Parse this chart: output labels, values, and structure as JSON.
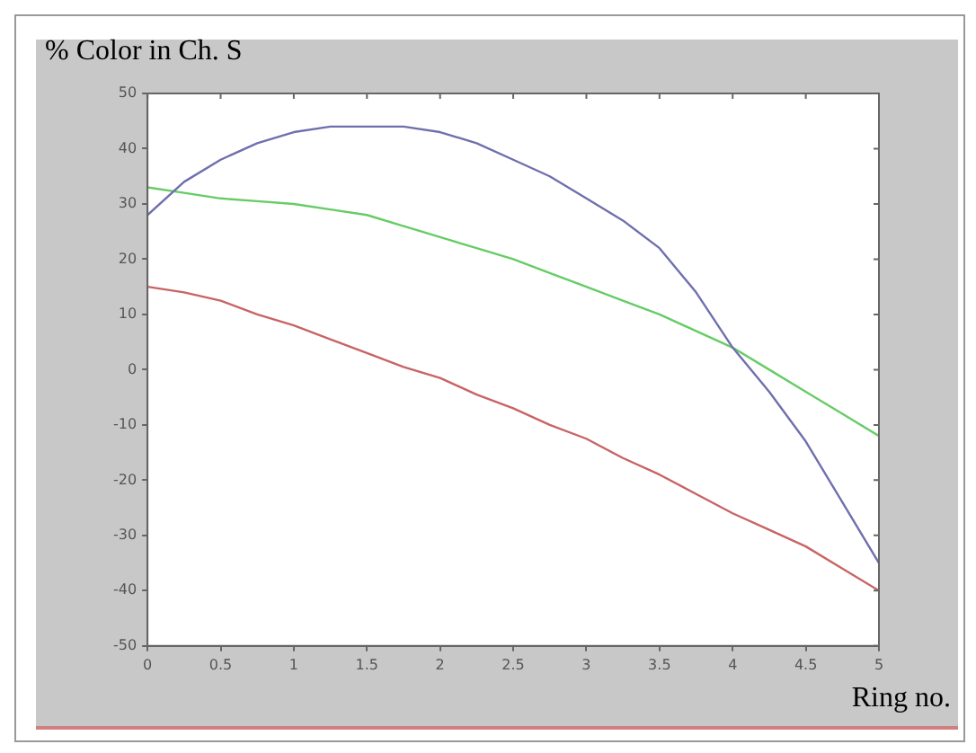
{
  "chart_data": {
    "type": "line",
    "title": "% Color in Ch. S",
    "xlabel": "Ring no.",
    "x": [
      0,
      0.25,
      0.5,
      0.75,
      1,
      1.25,
      1.5,
      1.75,
      2,
      2.25,
      2.5,
      2.75,
      3,
      3.25,
      3.5,
      3.75,
      4,
      4.25,
      4.5,
      4.75,
      5
    ],
    "series": [
      {
        "color": "#6f6fae",
        "values": [
          28,
          34,
          38,
          41,
          43,
          44,
          44,
          44,
          43,
          41,
          38,
          35,
          31,
          27,
          22,
          14,
          4,
          -4,
          -13,
          -24,
          -35
        ]
      },
      {
        "color": "#66cc66",
        "values": [
          33,
          32,
          31,
          30.5,
          30,
          29,
          28,
          26,
          24,
          22,
          20,
          17.5,
          15,
          12.5,
          10,
          7,
          4,
          0,
          -4,
          -8,
          -12
        ]
      },
      {
        "color": "#c86464",
        "values": [
          15,
          14,
          12.5,
          10,
          8,
          5.5,
          3,
          0.5,
          -1.5,
          -4.5,
          -7,
          -10,
          -12.5,
          -16,
          -19,
          -22.5,
          -26,
          -29,
          -32,
          -36,
          -40
        ]
      }
    ],
    "xlim": [
      0,
      5
    ],
    "xticks": [
      0,
      0.5,
      1,
      1.5,
      2,
      2.5,
      3,
      3.5,
      4,
      4.5,
      5
    ],
    "ylim": [
      -50,
      50
    ],
    "yticks": [
      -50,
      -40,
      -30,
      -20,
      -10,
      0,
      10,
      20,
      30,
      40,
      50
    ],
    "grid": false,
    "legend": false,
    "marker": "none",
    "line_style": "solid"
  }
}
